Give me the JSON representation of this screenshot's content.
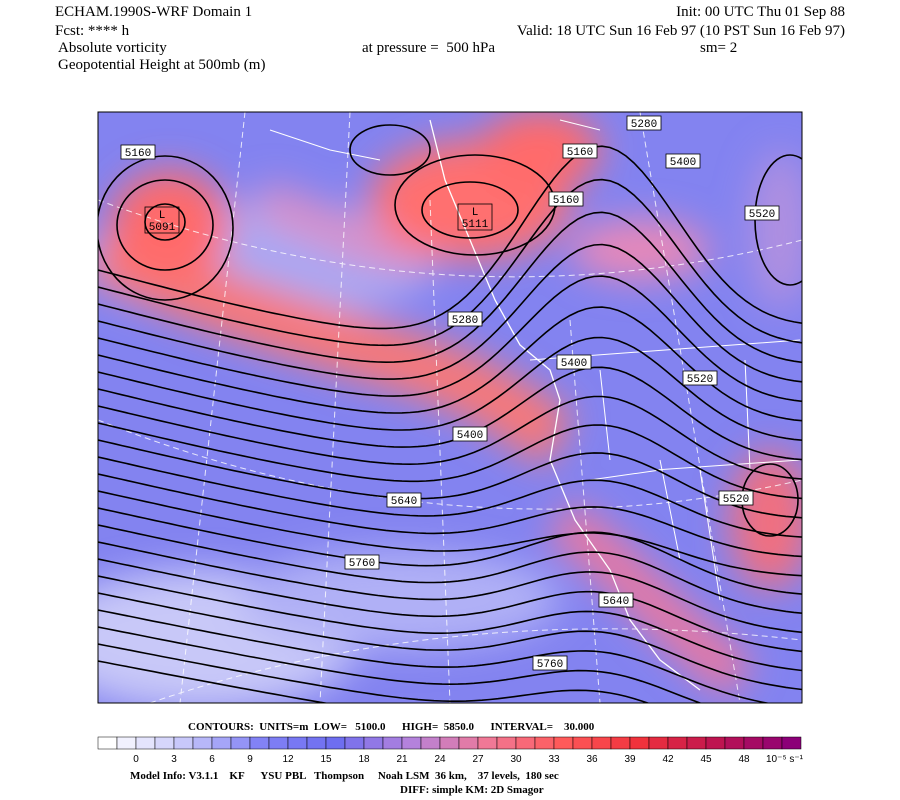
{
  "header": {
    "title": "ECHAM.1990S-WRF Domain 1",
    "init": "Init: 00 UTC Thu 01 Sep 88",
    "forecast": "Fcst: **** h",
    "valid": "Valid: 18 UTC Sun 16 Feb 97 (10 PST Sun 16 Feb 97)",
    "field": "Absolute vorticity",
    "pressure": "at pressure =  500 hPa",
    "smoothing": "sm= 2",
    "contour_field": "Geopotential Height at 500mb (m)"
  },
  "map": {
    "contour_labels": [
      5160,
      5160,
      5160,
      5280,
      5400,
      5520,
      5280,
      5400,
      5520,
      5400,
      5640,
      5520,
      5760,
      5640,
      5760
    ],
    "lows": [
      {
        "symbol": "L",
        "value": 5091
      },
      {
        "symbol": "L",
        "value": 5111
      }
    ]
  },
  "colorbar": {
    "ticks": [
      0,
      3,
      6,
      9,
      12,
      15,
      18,
      21,
      24,
      27,
      30,
      33,
      36,
      39,
      42,
      45,
      48
    ],
    "unit": "10⁻⁵ s⁻¹"
  },
  "footer": {
    "contours": "CONTOURS:  UNITS=m  LOW=   5100.0      HIGH=  5850.0      INTERVAL=    30.000",
    "model_info": "Model Info: V3.1.1    KF      YSU PBL   Thompson     Noah LSM  36 km,    37 levels,  180 sec",
    "diff": "DIFF: simple KM: 2D Smagor"
  }
}
